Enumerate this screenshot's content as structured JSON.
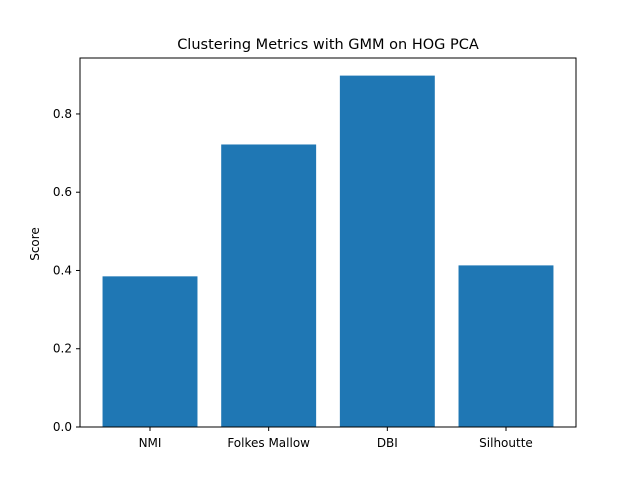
{
  "chart_data": {
    "type": "bar",
    "title": "Clustering Metrics with GMM on HOG PCA",
    "xlabel": "",
    "ylabel": "Score",
    "categories": [
      "NMI",
      "Folkes Mallow",
      "DBI",
      "Silhoutte"
    ],
    "values": [
      0.385,
      0.722,
      0.898,
      0.413
    ],
    "ylim": [
      0,
      0.943
    ],
    "yticks": [
      0.0,
      0.2,
      0.4,
      0.6,
      0.8
    ],
    "ytick_labels": [
      "0.0",
      "0.2",
      "0.4",
      "0.6",
      "0.8"
    ],
    "grid": false,
    "legend": "none",
    "bar_color": "#1f77b4"
  }
}
